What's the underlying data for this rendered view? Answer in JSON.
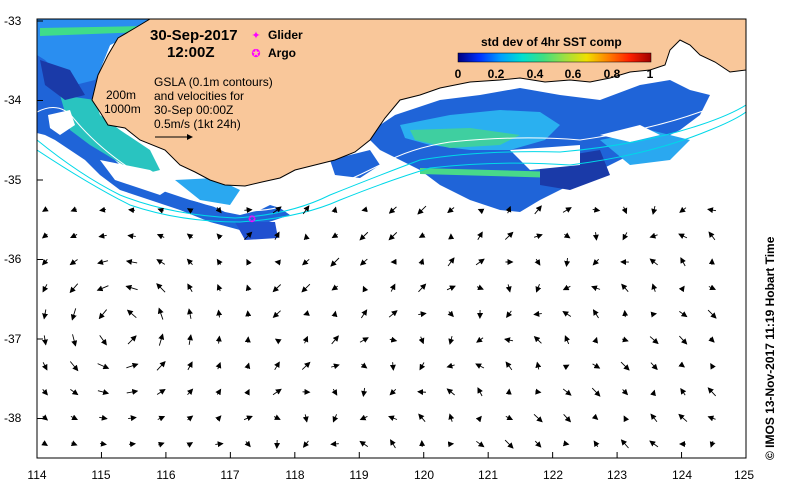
{
  "title": {
    "date": "30-Sep-2017",
    "time": "12:00Z"
  },
  "legend": {
    "glider_label": "Glider",
    "glider_symbol": "✦",
    "glider_color": "#ff00ff",
    "argo_label": "Argo",
    "argo_symbol": "✪",
    "argo_color": "#ff00ff"
  },
  "contours": {
    "label_200": "200m",
    "label_1000": "1000m",
    "color_200": "#ffffff",
    "color_1000": "#00d8e8"
  },
  "gsla_note": "GSLA (0.1m contours)\nand velocities for\n30-Sep 00:00Z\n0.5m/s (1kt 24h)",
  "colorbar": {
    "title": "std dev of 4hr SST comp",
    "ticks": [
      "0",
      "0.2",
      "0.4",
      "0.6",
      "0.8",
      "1"
    ],
    "min": 0,
    "max": 1,
    "colors": [
      "#000080",
      "#0030ff",
      "#00a0ff",
      "#00e0d0",
      "#40e080",
      "#a0e040",
      "#f0e000",
      "#ff8000",
      "#ff2000",
      "#a00000"
    ]
  },
  "axes": {
    "x_ticks": [
      "114",
      "115",
      "116",
      "117",
      "118",
      "119",
      "120",
      "121",
      "122",
      "123",
      "124",
      "125"
    ],
    "y_ticks": [
      "-33",
      "-34",
      "-35",
      "-36",
      "-37",
      "-38"
    ],
    "lon_range": [
      114,
      125
    ],
    "lat_range": [
      -38.5,
      -33
    ]
  },
  "colors": {
    "land": "#f9c79a",
    "ocean": "#ffffff",
    "cloud_mask": "#ffffff",
    "frame": "#000000"
  },
  "credit": "© IMOS 13-Nov-2017 11:19 Hobart Time"
}
